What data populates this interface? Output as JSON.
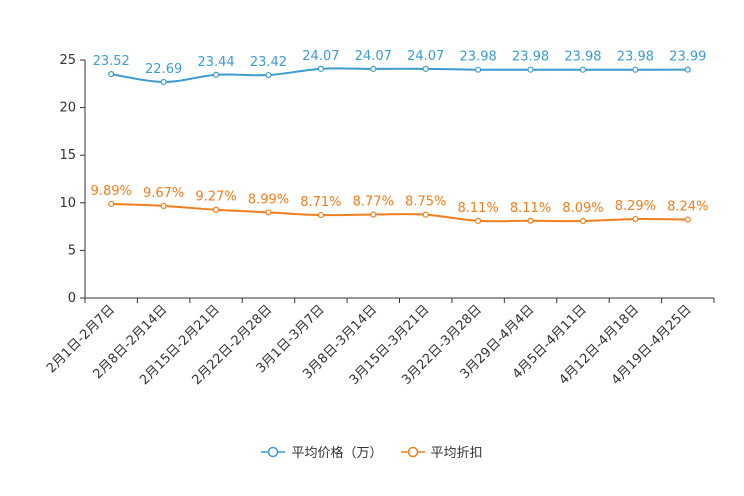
{
  "chart_data": {
    "type": "line",
    "categories": [
      "2月1日-2月7日",
      "2月8日-2月14日",
      "2月15日-2月21日",
      "2月22日-2月28日",
      "3月1日-3月7日",
      "3月8日-3月14日",
      "3月15日-3月21日",
      "3月22日-3月28日",
      "3月29日-4月4日",
      "4月5日-4月11日",
      "4月12日-4月18日",
      "4月19日-4月25日"
    ],
    "series": [
      {
        "name": "平均价格（万）",
        "color": "#3d9ccf",
        "values": [
          23.52,
          22.69,
          23.44,
          23.42,
          24.07,
          24.07,
          24.07,
          23.98,
          23.98,
          23.98,
          23.98,
          23.99
        ],
        "labels": [
          "23.52",
          "22.69",
          "23.44",
          "23.42",
          "24.07",
          "24.07",
          "24.07",
          "23.98",
          "23.98",
          "23.98",
          "23.98",
          "23.99"
        ]
      },
      {
        "name": "平均折扣",
        "color": "#f07e1c",
        "values": [
          9.89,
          9.67,
          9.27,
          8.99,
          8.71,
          8.77,
          8.75,
          8.11,
          8.11,
          8.09,
          8.29,
          8.24
        ],
        "labels": [
          "9.89%",
          "9.67%",
          "9.27%",
          "8.99%",
          "8.71%",
          "8.77%",
          "8.75%",
          "8.11%",
          "8.11%",
          "8.09%",
          "8.29%",
          "8.24%"
        ]
      }
    ],
    "ylim": [
      0,
      25
    ],
    "yticks": [
      "0",
      "5",
      "10",
      "15",
      "20",
      "25"
    ],
    "title": "",
    "xlabel": "",
    "ylabel": "",
    "legend_position": "bottom-center"
  }
}
